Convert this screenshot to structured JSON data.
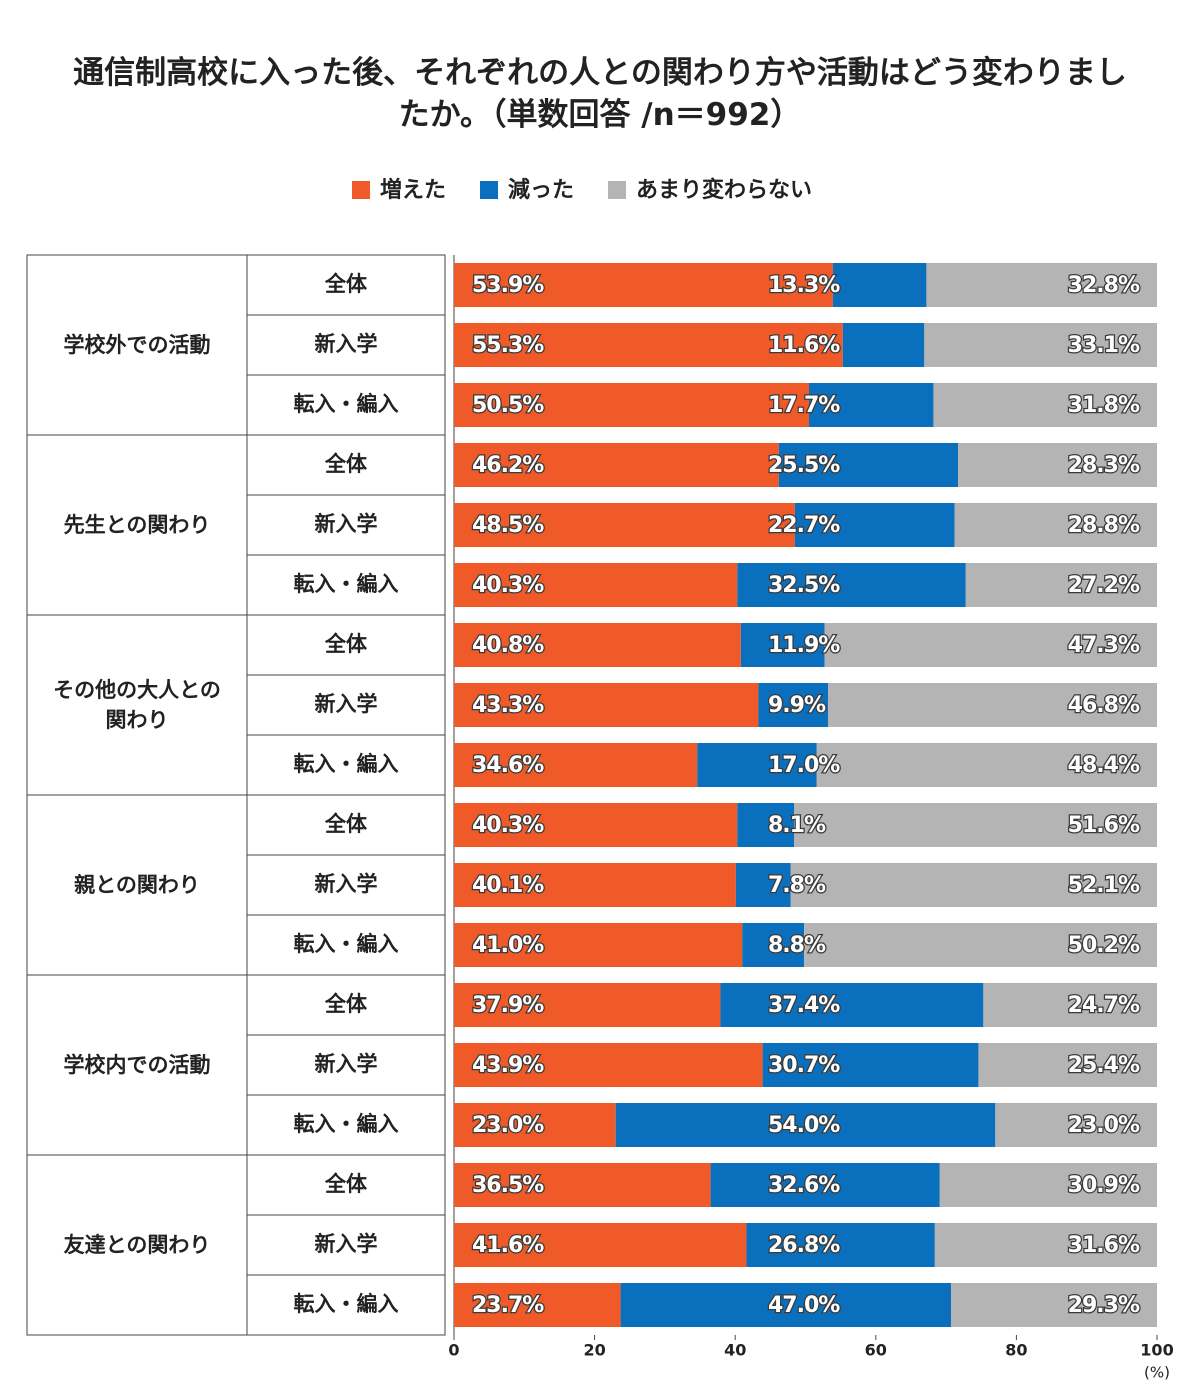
{
  "chart_data": {
    "type": "stacked-bar",
    "title": "通信制高校に入った後、それぞれの人との関わり方や活動はどう変わりましたか。（単数回答 /n＝992）",
    "groups": [
      "学校外での活動",
      "先生との関わり",
      "その他の大人との関わり",
      "親との関わり",
      "学校内での活動",
      "友達との関わり"
    ],
    "categories": [
      "全体",
      "新入学",
      "転入・編入",
      "全体",
      "新入学",
      "転入・編入",
      "全体",
      "新入学",
      "転入・編入",
      "全体",
      "新入学",
      "転入・編入",
      "全体",
      "新入学",
      "転入・編入",
      "全体",
      "新入学",
      "転入・編入"
    ],
    "series": [
      {
        "name": "増えた",
        "color": "#f05a28",
        "values": [
          53.9,
          55.3,
          50.5,
          46.2,
          48.5,
          40.3,
          40.8,
          43.3,
          34.6,
          40.3,
          40.1,
          41.0,
          37.9,
          43.9,
          23.0,
          36.5,
          41.6,
          23.7
        ],
        "value_labels": [
          "53.9%",
          "55.3%",
          "50.5%",
          "46.2%",
          "48.5%",
          "40.3%",
          "40.8%",
          "43.3%",
          "34.6%",
          "40.3%",
          "40.1%",
          "41.0%",
          "37.9%",
          "43.9%",
          "23.0%",
          "36.5%",
          "41.6%",
          "23.7%"
        ]
      },
      {
        "name": "減った",
        "color": "#0a6fbd",
        "values": [
          13.3,
          11.6,
          17.7,
          25.5,
          22.7,
          32.5,
          11.9,
          9.9,
          17.0,
          8.1,
          7.8,
          8.8,
          37.4,
          30.7,
          54.0,
          32.6,
          26.8,
          47.0
        ],
        "value_labels": [
          "13.3%",
          "11.6%",
          "17.7%",
          "25.5%",
          "22.7%",
          "32.5%",
          "11.9%",
          "9.9%",
          "17.0%",
          "8.1%",
          "7.8%",
          "8.8%",
          "37.4%",
          "30.7%",
          "54.0%",
          "32.6%",
          "26.8%",
          "47.0%"
        ]
      },
      {
        "name": "あまり変わらない",
        "color": "#b4b4b4",
        "values": [
          32.8,
          33.1,
          31.8,
          28.3,
          28.8,
          27.2,
          47.3,
          46.8,
          48.4,
          51.6,
          52.1,
          50.2,
          24.7,
          25.4,
          23.0,
          30.9,
          31.6,
          29.3
        ],
        "value_labels": [
          "32.8%",
          "33.1%",
          "31.8%",
          "28.3%",
          "28.8%",
          "27.2%",
          "47.3%",
          "46.8%",
          "48.4%",
          "51.6%",
          "52.1%",
          "50.2%",
          "24.7%",
          "25.4%",
          "23.0%",
          "30.9%",
          "31.6%",
          "29.3%"
        ]
      }
    ],
    "xlim": [
      0,
      100
    ],
    "xticks": [
      0,
      20,
      40,
      60,
      80,
      100
    ],
    "xlabel": "(%)"
  }
}
